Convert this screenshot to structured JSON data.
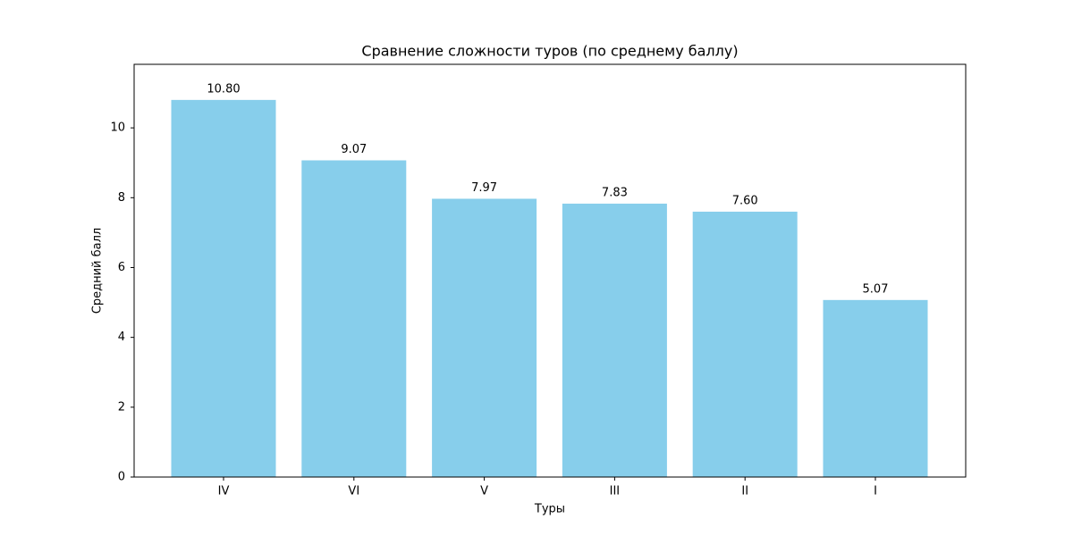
{
  "chart_data": {
    "type": "bar",
    "title": "Сравнение сложности туров (по среднему баллу)",
    "x_label": "Туры",
    "y_label": "Средний балл",
    "categories": [
      "IV",
      "VI",
      "V",
      "III",
      "II",
      "I"
    ],
    "values": [
      10.8,
      9.07,
      7.97,
      7.83,
      7.6,
      5.07
    ],
    "value_labels": [
      "10.80",
      "9.07",
      "7.97",
      "7.83",
      "7.60",
      "5.07"
    ],
    "color": "#87ceeb",
    "ylim": [
      0,
      11.82
    ],
    "yticks": [
      0,
      2,
      4,
      6,
      8,
      10
    ],
    "grid": false
  }
}
